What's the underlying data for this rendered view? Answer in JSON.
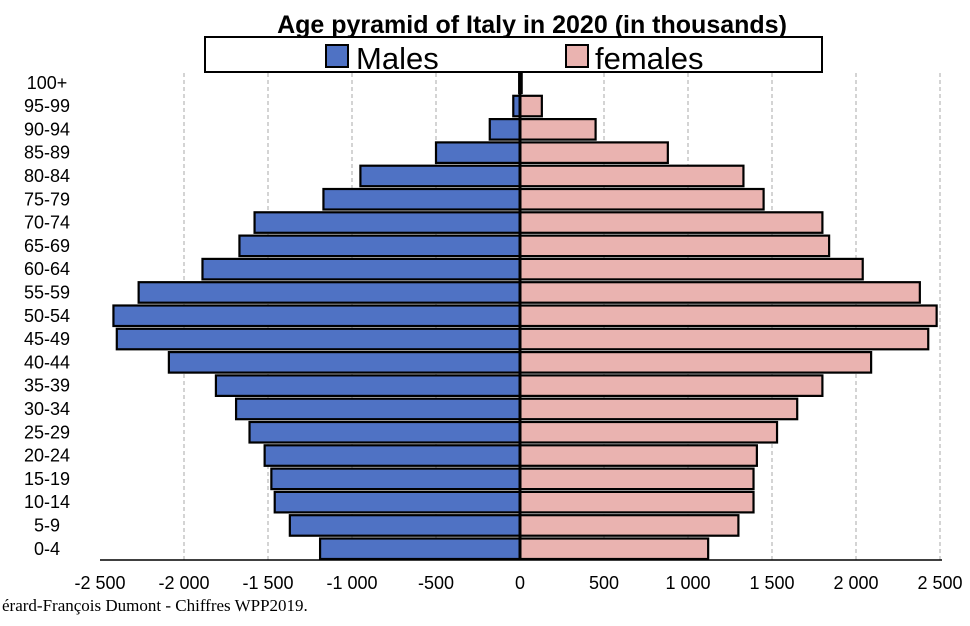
{
  "chart_data": {
    "type": "bar",
    "orientation": "horizontal",
    "layout": "population-pyramid",
    "title": "Age pyramid of Italy in 2020 (in thousands)",
    "categories": [
      "0-4",
      "5-9",
      "10-14",
      "15-19",
      "20-24",
      "25-29",
      "30-34",
      "35-39",
      "40-44",
      "45-49",
      "50-54",
      "55-59",
      "60-64",
      "65-69",
      "70-74",
      "75-79",
      "80-84",
      "85-89",
      "90-94",
      "95-99",
      "100+"
    ],
    "series": [
      {
        "name": "Males",
        "color": "#4f72c4",
        "values": [
          -1190,
          -1370,
          -1460,
          -1480,
          -1520,
          -1610,
          -1690,
          -1810,
          -2090,
          -2400,
          -2420,
          -2270,
          -1890,
          -1670,
          -1580,
          -1170,
          -950,
          -500,
          -180,
          -40,
          -5
        ]
      },
      {
        "name": "females",
        "color": "#eab3b0",
        "values": [
          1120,
          1300,
          1390,
          1390,
          1410,
          1530,
          1650,
          1800,
          2090,
          2430,
          2480,
          2380,
          2040,
          1840,
          1800,
          1450,
          1330,
          880,
          450,
          130,
          10
        ]
      }
    ],
    "xlim": [
      -2500,
      2500
    ],
    "xticks": [
      -2500,
      -2000,
      -1500,
      -1000,
      -500,
      0,
      500,
      1000,
      1500,
      2000,
      2500
    ],
    "xtick_labels": [
      "-2 500",
      "-2 000",
      "-1 500",
      "-1 000",
      "-500",
      "0",
      "500",
      "1 000",
      "1 500",
      "2 000",
      "2 500"
    ],
    "grid": "vertical dashed",
    "legend_position": "top"
  },
  "source": "érard-François Dumont - Chiffres  WPP2019."
}
